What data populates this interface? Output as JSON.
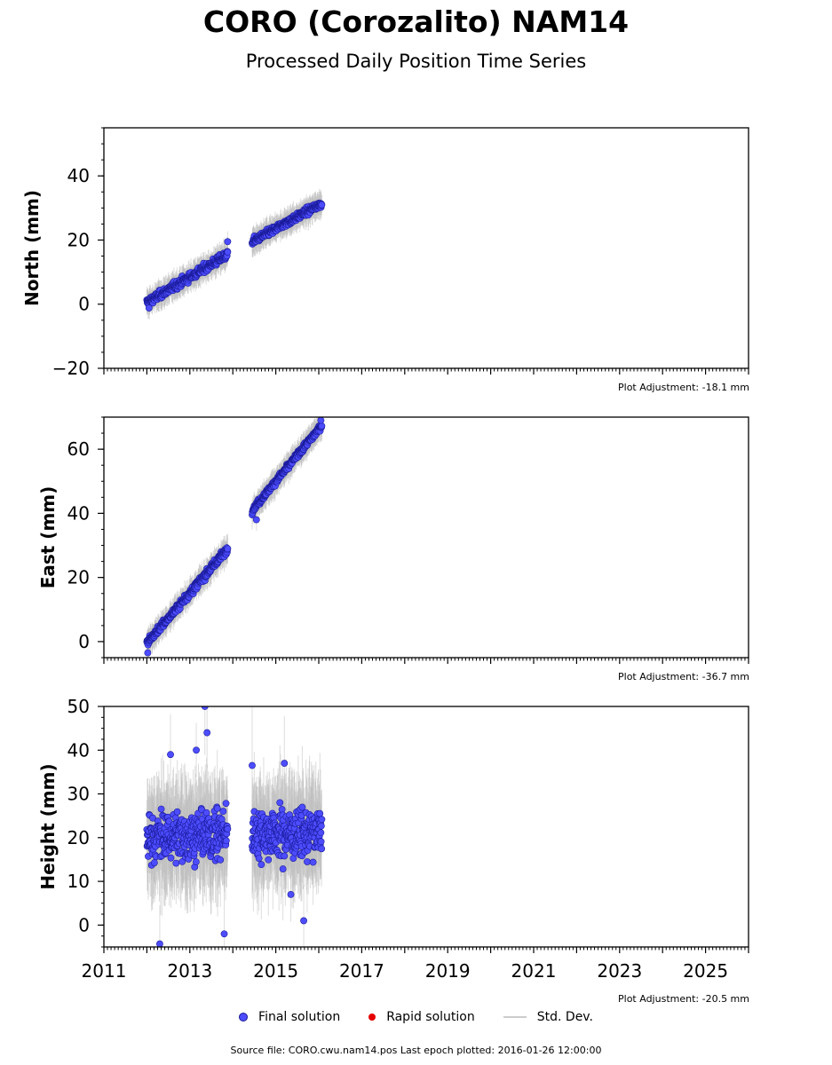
{
  "title": "CORO (Corozalito) NAM14",
  "subtitle": "Processed Daily Position Time Series",
  "legend": {
    "final": "Final solution",
    "rapid": "Rapid solution",
    "std": "Std. Dev."
  },
  "footer": {
    "source_label": "Source file: CORO.cwu.nam14.pos",
    "last_epoch_label": "Last epoch plotted: 2016-01-26 12:00:00"
  },
  "colors": {
    "final_fill": "#4d4dff",
    "final_edge": "#1a1a99",
    "rapid": "#e60000",
    "std": "#bbbbbb"
  },
  "chart_data": [
    {
      "type": "scatter",
      "ylabel": "North (mm)",
      "adjustment": "Plot Adjustment: -18.1 mm",
      "xlim": [
        2011,
        2026
      ],
      "ylim": [
        -20,
        55
      ],
      "yticks": [
        -20,
        0,
        20,
        40
      ],
      "ytick_labels": [
        "−20",
        "0",
        "20",
        "40"
      ],
      "xticks": [
        2011,
        2013,
        2015,
        2017,
        2019,
        2021,
        2023,
        2025
      ],
      "show_xtick_labels": false,
      "segments": [
        {
          "x": [
            2012.0,
            2013.88
          ],
          "y": [
            0.5,
            15.5
          ],
          "noise": 1.6
        },
        {
          "x": [
            2014.45,
            2016.07
          ],
          "y": [
            19.5,
            31.5
          ],
          "noise": 1.4
        }
      ],
      "outliers": [
        [
          2013.88,
          19.5
        ],
        [
          2012.05,
          -1.2
        ]
      ],
      "std_len": 3.5
    },
    {
      "type": "scatter",
      "ylabel": "East (mm)",
      "adjustment": "Plot Adjustment: -36.7 mm",
      "xlim": [
        2011,
        2026
      ],
      "ylim": [
        -5,
        70
      ],
      "yticks": [
        0,
        20,
        40,
        60
      ],
      "ytick_labels": [
        "0",
        "20",
        "40",
        "60"
      ],
      "xticks": [
        2011,
        2013,
        2015,
        2017,
        2019,
        2021,
        2023,
        2025
      ],
      "show_xtick_labels": false,
      "segments": [
        {
          "x": [
            2012.0,
            2013.88
          ],
          "y": [
            -0.5,
            29.0
          ],
          "noise": 1.5
        },
        {
          "x": [
            2014.45,
            2016.07
          ],
          "y": [
            41.0,
            67.5
          ],
          "noise": 1.2
        }
      ],
      "outliers": [
        [
          2012.02,
          -3.5
        ],
        [
          2014.55,
          38.0
        ],
        [
          2016.05,
          69.0
        ]
      ],
      "std_len": 3.5
    },
    {
      "type": "scatter",
      "ylabel": "Height (mm)",
      "adjustment": "Plot Adjustment: -20.5 mm",
      "xlim": [
        2011,
        2026
      ],
      "ylim": [
        -5,
        50
      ],
      "yticks": [
        0,
        10,
        20,
        30,
        40,
        50
      ],
      "ytick_labels": [
        "0",
        "10",
        "20",
        "30",
        "40",
        "50"
      ],
      "xticks": [
        2011,
        2013,
        2015,
        2017,
        2019,
        2021,
        2023,
        2025
      ],
      "xtick_labels": [
        "2011",
        "2013",
        "2015",
        "2017",
        "2019",
        "2021",
        "2023",
        "2025"
      ],
      "show_xtick_labels": true,
      "segments": [
        {
          "x": [
            2012.0,
            2013.88
          ],
          "y": [
            20.0,
            21.0
          ],
          "noise": 7.0
        },
        {
          "x": [
            2014.45,
            2016.07
          ],
          "y": [
            21.0,
            21.0
          ],
          "noise": 7.0
        }
      ],
      "outliers": [
        [
          2013.35,
          50.0
        ],
        [
          2013.4,
          44.0
        ],
        [
          2012.3,
          -4.3
        ],
        [
          2013.8,
          -2.0
        ],
        [
          2012.55,
          39.0
        ],
        [
          2013.15,
          40.0
        ],
        [
          2015.35,
          7.0
        ],
        [
          2015.65,
          1.0
        ],
        [
          2014.45,
          36.5
        ],
        [
          2015.2,
          37.0
        ]
      ],
      "std_len": 10.0
    }
  ]
}
